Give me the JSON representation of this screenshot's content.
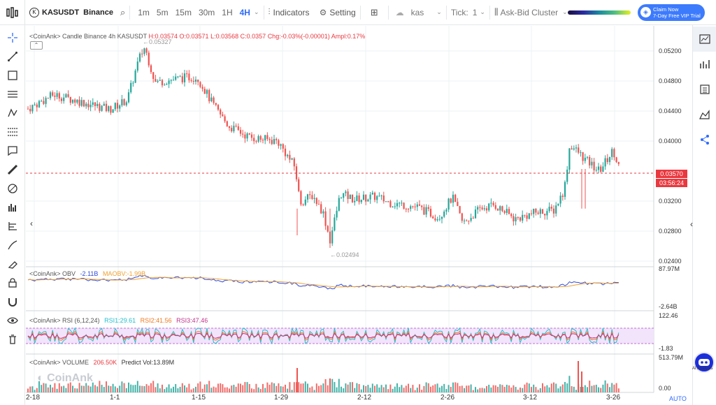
{
  "topbar": {
    "symbol": "KASUSDT",
    "exchange": "Binance",
    "timeframes": [
      "1m",
      "5m",
      "15m",
      "30m",
      "1H",
      "4H"
    ],
    "active_tf": "4H",
    "indicators_label": "Indicators",
    "setting_label": "Setting",
    "coin": "kas",
    "tick_label": "Tick:",
    "tick_value": "1",
    "cluster_label": "Ask-Bid Cluster",
    "claim_line1": "Claim Now",
    "claim_line2": "7-Day Free VIP Trial"
  },
  "legend": {
    "main": "<CoinAnk> Candle  Binance 4h KASUSDT",
    "h": "H:0.03574",
    "o": "O:0.03571",
    "l": "L:0.03568",
    "c": "C:0.0357",
    "chg": "Chg:-0.03%(-0.00001)",
    "ampl": "Ampl:0.17%",
    "obv": "<CoinAnk> OBV",
    "obv_v": "-2.11B",
    "maobv": "MAOBV:-1.99B",
    "rsi": "<CoinAnk> RSI (6,12,24)",
    "rsi1": "RSI1:29.61",
    "rsi2": "RSI2:41.56",
    "rsi3": "RSI3:47.46",
    "vol": "<CoinAnk> VOLUME",
    "vol_v": "206.50K",
    "predict": "Predict Vol:13.89M"
  },
  "chart_data": {
    "type": "candlestick",
    "price_ticks": [
      "0.05200",
      "0.04800",
      "0.04400",
      "0.04000",
      "0.03200",
      "0.02800",
      "0.02400"
    ],
    "obv_ticks": [
      "87.97M",
      "-2.64B"
    ],
    "rsi_ticks": [
      "122.46",
      "-1.83"
    ],
    "vol_ticks": [
      "513.79M",
      "0.00"
    ],
    "x_ticks": [
      "2-18",
      "1-1",
      "1-15",
      "1-29",
      "2-12",
      "2-26",
      "3-12",
      "3-26"
    ],
    "high_label": "0.05327",
    "low_label": "0.02494",
    "last_price": "0.03570",
    "countdown": "03:56:24",
    "axis_mode": "AUTO",
    "watermark": "CoinAnk"
  },
  "ai_label": "AI Analysis",
  "colors": {
    "up": "#26a69a",
    "down": "#ef5350",
    "accent": "#2f6bff"
  }
}
